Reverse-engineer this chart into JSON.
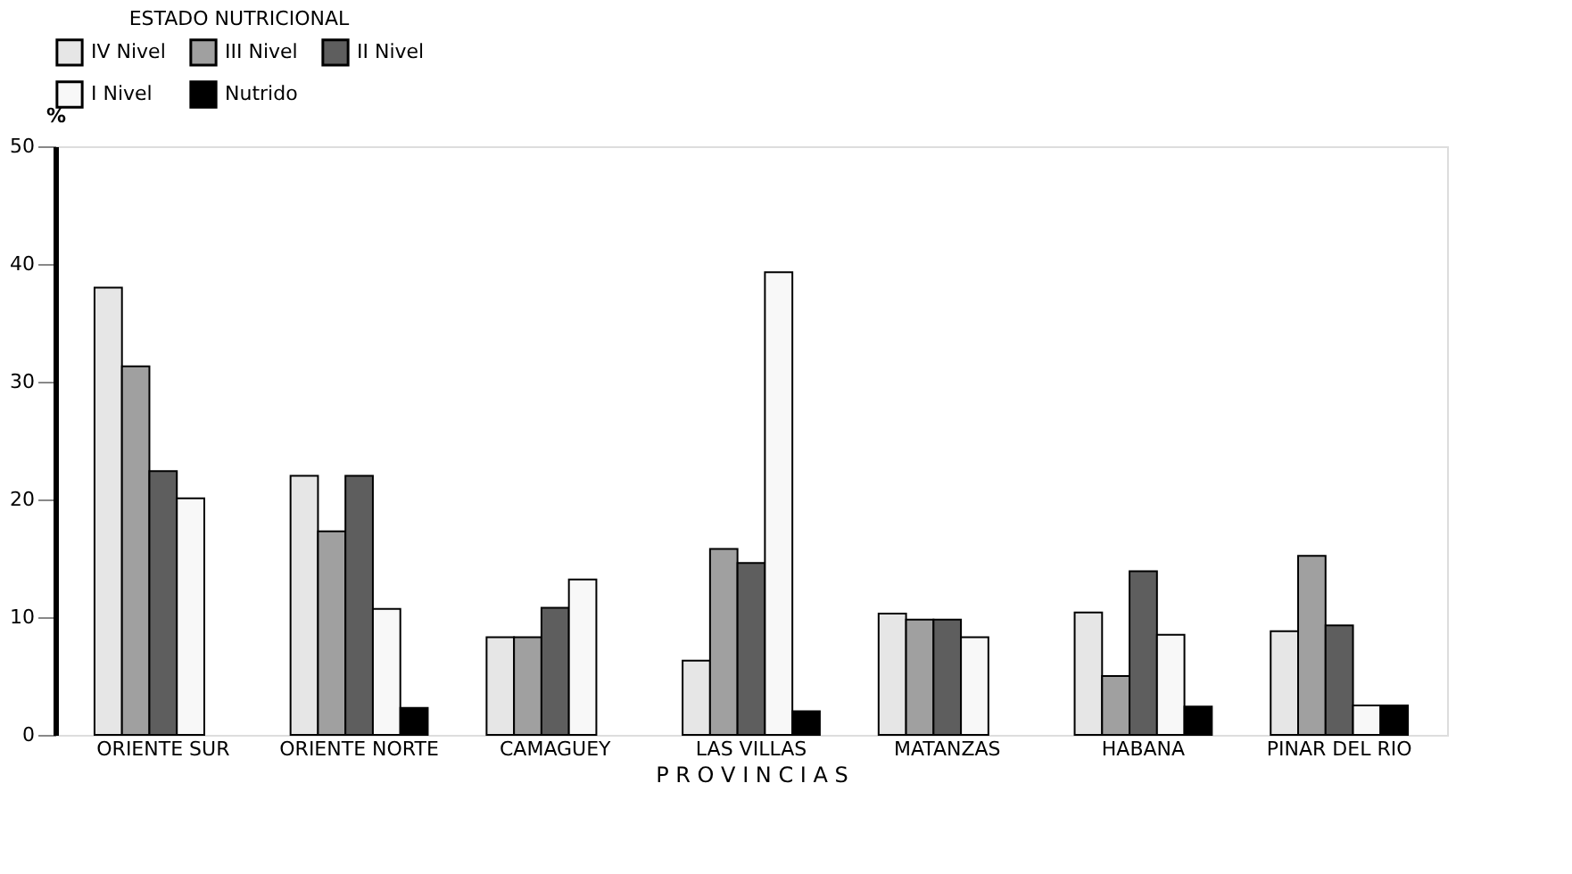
{
  "chart_data": {
    "type": "bar",
    "legend_title": "ESTADO NUTRICIONAL",
    "ylabel": "%",
    "xlabel": "P R O V I N C I A S",
    "categories": [
      "ORIENTE SUR",
      "ORIENTE NORTE",
      "CAMAGUEY",
      "LAS VILLAS",
      "MATANZAS",
      "HABANA",
      "PINAR DEL RIO"
    ],
    "series": [
      {
        "name": "IV Nivel",
        "color": "#e6e6e6",
        "values": [
          38,
          22,
          8.3,
          6.3,
          10.3,
          10.4,
          8.8
        ]
      },
      {
        "name": "III Nivel",
        "color": "#a0a0a0",
        "values": [
          31.3,
          17.3,
          8.3,
          15.8,
          9.8,
          5.0,
          15.2
        ]
      },
      {
        "name": "II Nivel",
        "color": "#5e5e5e",
        "values": [
          22.4,
          22,
          10.8,
          14.6,
          9.8,
          13.9,
          9.3
        ]
      },
      {
        "name": "I Nivel",
        "color": "#f8f8f8",
        "values": [
          20.1,
          10.7,
          13.2,
          39.3,
          8.3,
          8.5,
          2.5
        ]
      },
      {
        "name": "Nutrido",
        "color": "#000000",
        "values": [
          null,
          2.3,
          null,
          2.0,
          null,
          2.4,
          2.5
        ]
      }
    ],
    "ylim": [
      0,
      50
    ],
    "yticks": [
      0,
      10,
      20,
      30,
      40,
      50
    ],
    "grid": false,
    "legend": "top"
  }
}
